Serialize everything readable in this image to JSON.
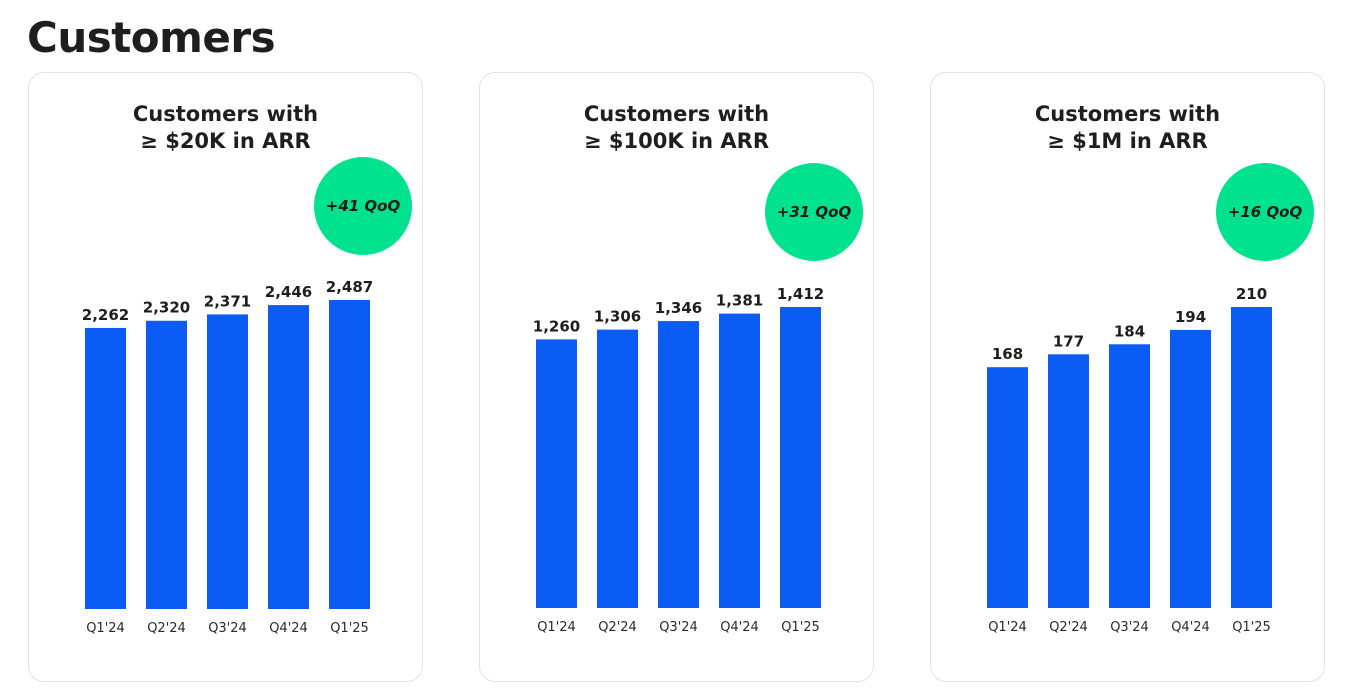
{
  "page": {
    "title": "Customers"
  },
  "colors": {
    "bar": "#0a5cf5",
    "badge": "#00e28e",
    "card_border": "#e3e3e3"
  },
  "chart_data": [
    {
      "type": "bar",
      "title_line1": "Customers with",
      "title_line2": "≥ $20K in ARR",
      "badge": "+41 QoQ",
      "categories": [
        "Q1'24",
        "Q2'24",
        "Q3'24",
        "Q4'24",
        "Q1'25"
      ],
      "values": [
        2262,
        2320,
        2371,
        2446,
        2487
      ],
      "value_labels": [
        "2,262",
        "2,320",
        "2,371",
        "2,446",
        "2,487"
      ],
      "ylim": [
        0,
        2487
      ]
    },
    {
      "type": "bar",
      "title_line1": "Customers with",
      "title_line2": "≥ $100K in ARR",
      "badge": "+31 QoQ",
      "categories": [
        "Q1'24",
        "Q2'24",
        "Q3'24",
        "Q4'24",
        "Q1'25"
      ],
      "values": [
        1260,
        1306,
        1346,
        1381,
        1412
      ],
      "value_labels": [
        "1,260",
        "1,306",
        "1,346",
        "1,381",
        "1,412"
      ],
      "ylim": [
        0,
        1412
      ]
    },
    {
      "type": "bar",
      "title_line1": "Customers with",
      "title_line2": "≥ $1M in ARR",
      "badge": "+16 QoQ",
      "categories": [
        "Q1'24",
        "Q2'24",
        "Q3'24",
        "Q4'24",
        "Q1'25"
      ],
      "values": [
        168,
        177,
        184,
        194,
        210
      ],
      "value_labels": [
        "168",
        "177",
        "184",
        "194",
        "210"
      ],
      "ylim": [
        0,
        210
      ]
    }
  ]
}
